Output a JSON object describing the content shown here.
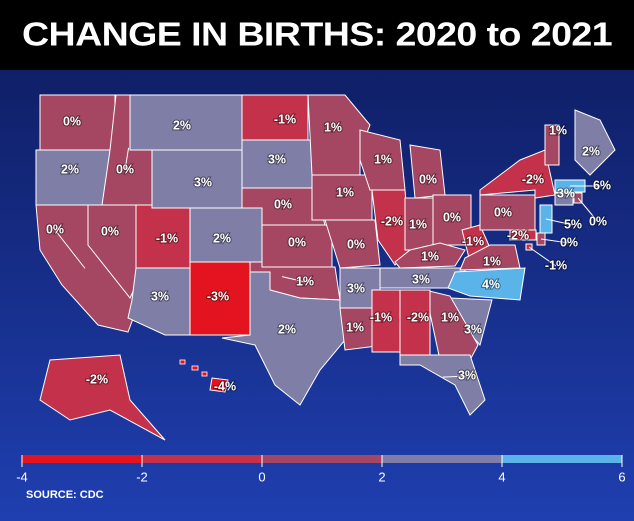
{
  "title": "CHANGE IN BIRTHS: 2020 to 2021",
  "source": "SOURCE: CDC",
  "map": {
    "type": "choropleth",
    "values": [
      0,
      2,
      0,
      0,
      0,
      2,
      3,
      -1,
      2,
      3,
      -3,
      -1,
      3,
      0,
      0,
      1,
      2,
      1,
      1,
      0,
      3,
      1,
      1,
      -2,
      0,
      1,
      0,
      1,
      3,
      -1,
      1,
      4,
      3,
      1,
      -2,
      -1,
      3,
      0,
      -2,
      1,
      2,
      6,
      3,
      5,
      0,
      0,
      -2,
      -1,
      -2,
      -4
    ],
    "value_labels": [
      "0%",
      "2%",
      "0%",
      "0%",
      "0%",
      "2%",
      "3%",
      "-1%",
      "2%",
      "3%",
      "-3%",
      "-1%",
      "3%",
      "0%",
      "0%",
      "1%",
      "2%",
      "1%",
      "1%",
      "0%",
      "3%",
      "1%",
      "1%",
      "-2%",
      "0%",
      "1%",
      "0%",
      "1%",
      "3%",
      "-1%",
      "1%",
      "4%",
      "3%",
      "1%",
      "-2%",
      "-1%",
      "3%",
      "0%",
      "-2%",
      "1%",
      "2%",
      "6%",
      "3%",
      "5%",
      "0%",
      "0%",
      "-2%",
      "-1%",
      "-2%",
      "-4%"
    ]
  },
  "legend": {
    "ticks": [
      -4,
      -2,
      0,
      2,
      4,
      6
    ],
    "colors": [
      "#e3141f",
      "#c3324a",
      "#a54662",
      "#7f7ea6",
      "#5ab4ea"
    ]
  }
}
